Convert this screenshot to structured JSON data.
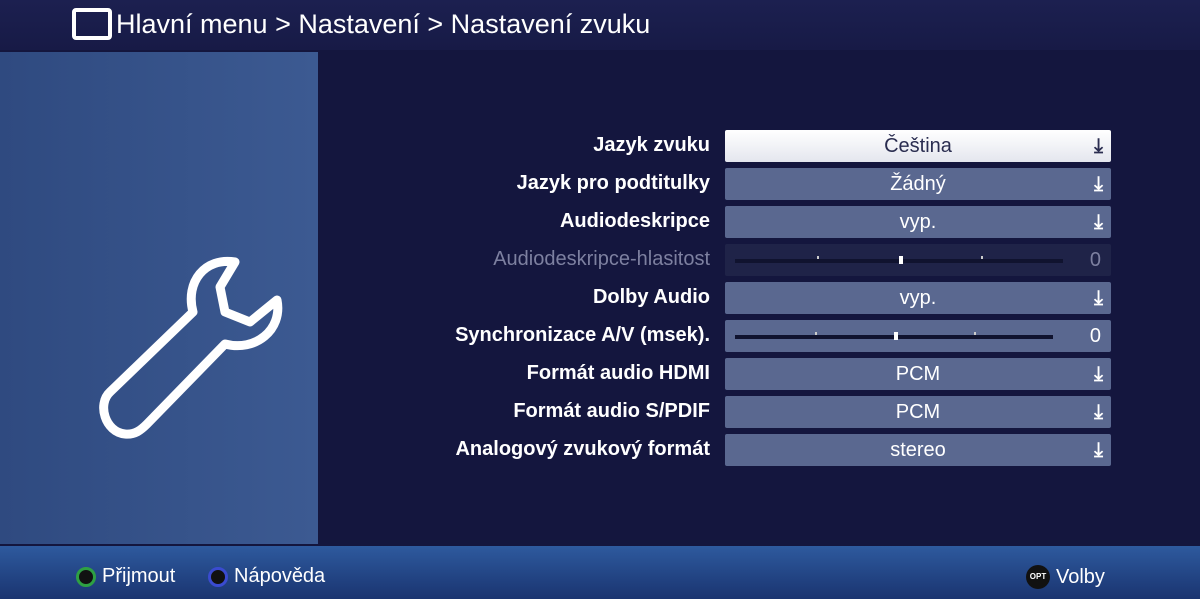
{
  "header": {
    "icon": "tv-icon",
    "breadcrumb": "Hlavní menu > Nastavení > Nastavení zvuku"
  },
  "sidebar": {
    "icon": "wrench-icon"
  },
  "settings": [
    {
      "label": "Jazyk zvuku",
      "value": "Čeština",
      "type": "dropdown",
      "selected": true
    },
    {
      "label": "Jazyk pro podtitulky",
      "value": "Žádný",
      "type": "dropdown"
    },
    {
      "label": "Audiodeskripce",
      "value": "vyp.",
      "type": "dropdown"
    },
    {
      "label": "Audiodeskripce-hlasitost",
      "value": "0",
      "type": "slider",
      "disabled": true
    },
    {
      "label": "Dolby Audio",
      "value": "vyp.",
      "type": "dropdown"
    },
    {
      "label": "Synchronizace  A/V  (msek).",
      "value": "0",
      "type": "slider"
    },
    {
      "label": "Formát audio HDMI",
      "value": "PCM",
      "type": "dropdown"
    },
    {
      "label": "Formát audio S/PDIF",
      "value": "PCM",
      "type": "dropdown"
    },
    {
      "label": "Analogový zvukový formát",
      "value": "stereo",
      "type": "dropdown"
    }
  ],
  "footer": {
    "accept": "Přijmout",
    "help": "Nápověda",
    "opt_badge": "OPT",
    "options": "Volby",
    "accept_color": "#2ea043",
    "help_color": "#3a4bd0"
  }
}
